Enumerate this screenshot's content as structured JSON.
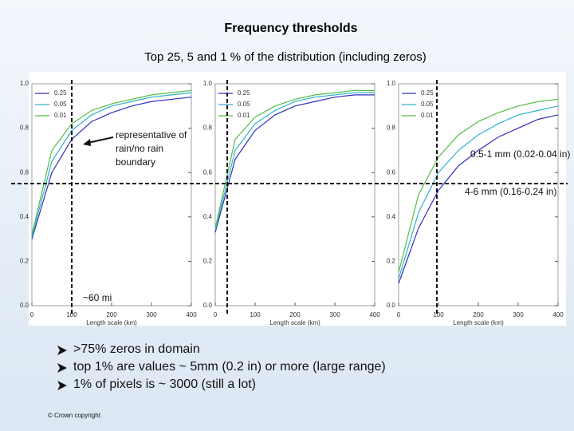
{
  "title": "Frequency thresholds",
  "subtitle": "Top 25, 5 and 1 % of the distribution (including zeros)",
  "annotations": [
    "representative of rain/no rain boundary",
    "~60 mi",
    "0.5-1 mm (0.02-0.04 in)",
    "4-6 mm (0.16-0.24 in)"
  ],
  "bullets": [
    ">75% zeros in domain",
    "top 1% are values ~ 5mm (0.2 in) or more (large range)",
    "1% of pixels is ~ 3000 (still a lot)"
  ],
  "footer": "© Crown copyright",
  "chart_data": [
    {
      "type": "line",
      "xlabel": "Length scale (km)",
      "x": [
        0,
        50,
        100,
        150,
        200,
        250,
        300,
        350,
        400
      ],
      "xlim": [
        0,
        400
      ],
      "ylim": [
        0,
        1
      ],
      "xticks": [
        0,
        100,
        200,
        300,
        400
      ],
      "yticks": [
        {
          "value": 0,
          "label": "0.0"
        },
        0.2,
        0.4,
        0.6,
        0.8,
        {
          "value": 1,
          "label": "1.0"
        }
      ],
      "legend": "upper left",
      "series": [
        {
          "name": "0.25",
          "color": "#3030c0",
          "values": [
            0.3,
            0.6,
            0.75,
            0.83,
            0.87,
            0.9,
            0.92,
            0.93,
            0.94
          ]
        },
        {
          "name": "0.05",
          "color": "#30b0d0",
          "values": [
            0.31,
            0.65,
            0.79,
            0.86,
            0.9,
            0.92,
            0.94,
            0.95,
            0.96
          ]
        },
        {
          "name": "0.01",
          "color": "#50c040",
          "values": [
            0.32,
            0.7,
            0.82,
            0.88,
            0.91,
            0.93,
            0.95,
            0.96,
            0.97
          ]
        }
      ]
    },
    {
      "type": "line",
      "xlabel": "Length scale (km)",
      "x": [
        0,
        50,
        100,
        150,
        200,
        250,
        300,
        350,
        400
      ],
      "xlim": [
        0,
        400
      ],
      "ylim": [
        0,
        1
      ],
      "xticks": [
        0,
        100,
        200,
        300,
        400
      ],
      "yticks": [
        {
          "value": 0,
          "label": "0.0"
        },
        0.2,
        0.4,
        0.6,
        0.8,
        {
          "value": 1,
          "label": "1.0"
        }
      ],
      "legend": "upper left",
      "series": [
        {
          "name": "0.25",
          "color": "#3030c0",
          "values": [
            0.33,
            0.66,
            0.79,
            0.86,
            0.9,
            0.92,
            0.94,
            0.95,
            0.95
          ]
        },
        {
          "name": "0.05",
          "color": "#30b0d0",
          "values": [
            0.34,
            0.7,
            0.82,
            0.88,
            0.92,
            0.94,
            0.95,
            0.96,
            0.96
          ]
        },
        {
          "name": "0.01",
          "color": "#50c040",
          "values": [
            0.35,
            0.75,
            0.85,
            0.9,
            0.93,
            0.95,
            0.96,
            0.97,
            0.97
          ]
        }
      ]
    },
    {
      "type": "line",
      "xlabel": "Length scale (km)",
      "x": [
        0,
        50,
        100,
        150,
        200,
        250,
        300,
        350,
        400
      ],
      "xlim": [
        0,
        400
      ],
      "ylim": [
        0,
        1
      ],
      "xticks": [
        0,
        100,
        200,
        300,
        400
      ],
      "yticks": [
        {
          "value": 0,
          "label": "0.0"
        },
        0.2,
        0.4,
        0.6,
        0.8,
        {
          "value": 1,
          "label": "1.0"
        }
      ],
      "legend": "upper left",
      "series": [
        {
          "name": "0.25",
          "color": "#3030c0",
          "values": [
            0.1,
            0.35,
            0.52,
            0.63,
            0.7,
            0.76,
            0.8,
            0.84,
            0.86
          ]
        },
        {
          "name": "0.05",
          "color": "#30b0d0",
          "values": [
            0.12,
            0.42,
            0.6,
            0.7,
            0.77,
            0.82,
            0.86,
            0.88,
            0.9
          ]
        },
        {
          "name": "0.01",
          "color": "#50c040",
          "values": [
            0.15,
            0.5,
            0.67,
            0.77,
            0.83,
            0.87,
            0.9,
            0.92,
            0.93
          ]
        }
      ]
    }
  ]
}
